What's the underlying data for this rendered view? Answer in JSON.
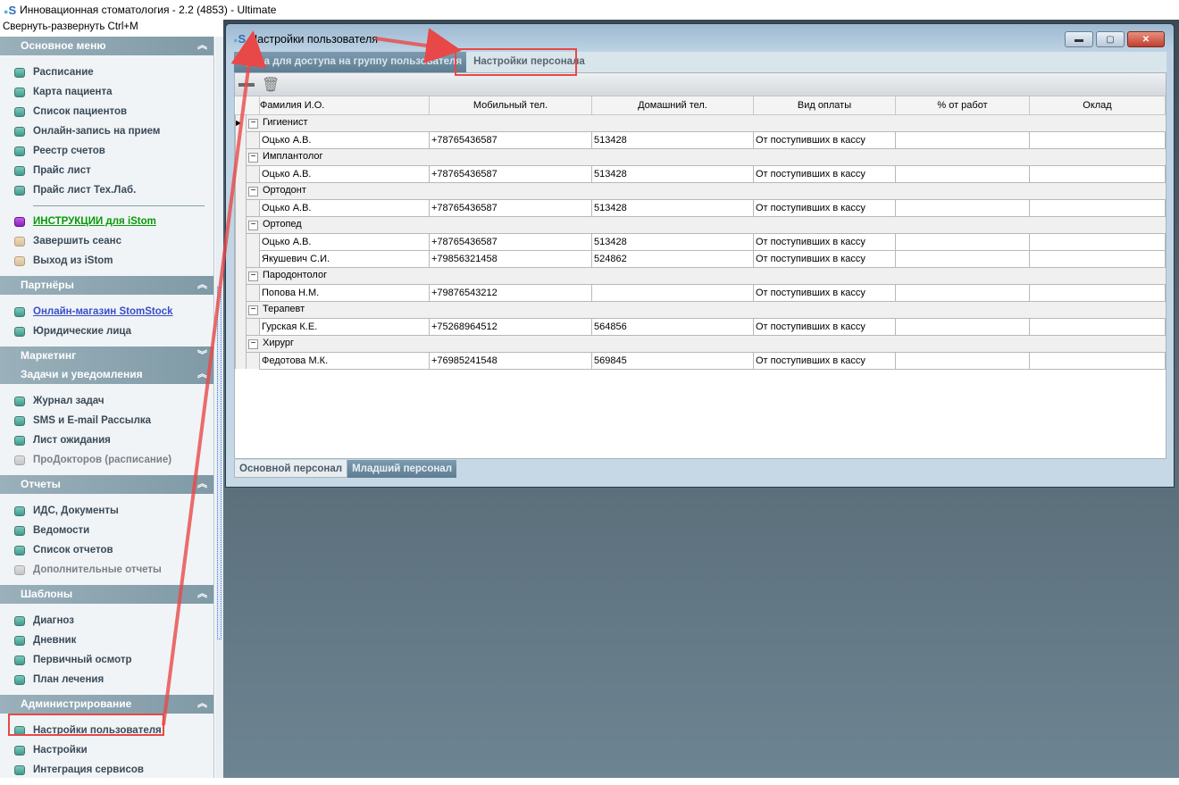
{
  "app": {
    "title": "Инновационная стоматология - 2.2 (4853) - Ultimate",
    "collapse_hint": "Свернуть-развернуть Ctrl+M"
  },
  "sidebar": [
    {
      "title": "Основное меню",
      "chevron": "up",
      "items": [
        {
          "label": "Расписание",
          "icon": "teal"
        },
        {
          "label": "Карта пациента",
          "icon": "teal"
        },
        {
          "label": "Список пациентов",
          "icon": "teal"
        },
        {
          "label": "Онлайн-запись на прием",
          "icon": "teal"
        },
        {
          "label": "Реестр счетов",
          "icon": "teal"
        },
        {
          "label": "Прайс лист",
          "icon": "teal"
        },
        {
          "label": "Прайс лист Тех.Лаб.",
          "icon": "teal",
          "divider_after": true
        },
        {
          "label": "ИНСТРУКЦИИ для iStom",
          "icon": "purple",
          "style": "green"
        },
        {
          "label": "Завершить сеанс",
          "icon": "tan"
        },
        {
          "label": "Выход из iStom",
          "icon": "tan"
        }
      ]
    },
    {
      "title": "Партнёры",
      "chevron": "up",
      "items": [
        {
          "label": "Онлайн-магазин StomStock",
          "icon": "teal",
          "style": "link"
        },
        {
          "label": "Юридические лица",
          "icon": "teal"
        }
      ]
    },
    {
      "title": "Маркетинг",
      "chevron": "down",
      "items": []
    },
    {
      "title": "Задачи и уведомления",
      "chevron": "up",
      "items": [
        {
          "label": "Журнал задач",
          "icon": "teal"
        },
        {
          "label": "SMS и E-mail Рассылка",
          "icon": "teal"
        },
        {
          "label": "Лист ожидания",
          "icon": "teal"
        },
        {
          "label": "ПроДокторов (расписание)",
          "icon": "gray",
          "style": "dim"
        }
      ]
    },
    {
      "title": "Отчеты",
      "chevron": "up",
      "items": [
        {
          "label": "ИДС, Документы",
          "icon": "teal"
        },
        {
          "label": "Ведомости",
          "icon": "teal"
        },
        {
          "label": "Список отчетов",
          "icon": "teal"
        },
        {
          "label": "Дополнительные отчеты",
          "icon": "gray",
          "style": "dim"
        }
      ]
    },
    {
      "title": "Шаблоны",
      "chevron": "up",
      "items": [
        {
          "label": "Диагноз",
          "icon": "teal"
        },
        {
          "label": "Дневник",
          "icon": "teal"
        },
        {
          "label": "Первичный осмотр",
          "icon": "teal"
        },
        {
          "label": "План лечения",
          "icon": "teal"
        }
      ]
    },
    {
      "title": "Администрирование",
      "chevron": "up",
      "items": [
        {
          "label": "Настройки пользователя",
          "icon": "teal"
        },
        {
          "label": "Настройки",
          "icon": "teal"
        },
        {
          "label": "Интеграция сервисов",
          "icon": "teal"
        }
      ]
    }
  ],
  "window": {
    "title": "Настройки пользователя",
    "tabs": [
      "Права для доступа на группу пользователя",
      "Настройки персонала"
    ],
    "bottom_tabs": [
      "Основной персонал",
      "Младший персонал"
    ],
    "columns": [
      "Фамилия И.О.",
      "Мобильный тел.",
      "Домашний тел.",
      "Вид оплаты",
      "%  от работ",
      "Оклад"
    ],
    "groups": [
      {
        "name": "Гигиенист",
        "rows": [
          [
            "Оцько А.В.",
            "+78765436587",
            "513428",
            "От поступивших в кассу",
            "",
            ""
          ]
        ]
      },
      {
        "name": "Имплантолог",
        "rows": [
          [
            "Оцько А.В.",
            "+78765436587",
            "513428",
            "От поступивших в кассу",
            "",
            ""
          ]
        ]
      },
      {
        "name": "Ортодонт",
        "rows": [
          [
            "Оцько А.В.",
            "+78765436587",
            "513428",
            "От поступивших в кассу",
            "",
            ""
          ]
        ]
      },
      {
        "name": "Ортопед",
        "rows": [
          [
            "Оцько А.В.",
            "+78765436587",
            "513428",
            "От поступивших в кассу",
            "",
            ""
          ],
          [
            "Якушевич С.И.",
            "+79856321458",
            "524862",
            "От поступивших в кассу",
            "",
            ""
          ]
        ]
      },
      {
        "name": "Пародонтолог",
        "rows": [
          [
            "Попова Н.М.",
            "+79876543212",
            "",
            "От поступивших в кассу",
            "",
            ""
          ]
        ]
      },
      {
        "name": "Терапевт",
        "rows": [
          [
            "Гурская К.Е.",
            "+75268964512",
            "564856",
            "От поступивших в кассу",
            "",
            ""
          ]
        ]
      },
      {
        "name": "Хирург",
        "rows": [
          [
            "Федотова М.К.",
            "+76985241548",
            "569845",
            "От поступивших в кассу",
            "",
            ""
          ]
        ]
      }
    ]
  },
  "annotation_color": "#e84848"
}
